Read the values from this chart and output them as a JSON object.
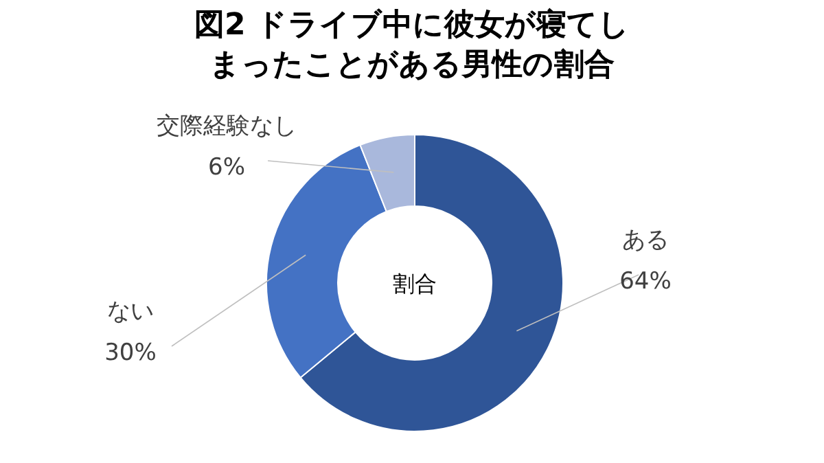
{
  "chart_data": {
    "type": "donut",
    "title": "図2 ドライブ中に彼女が寝てしまったことがある男性の割合",
    "categories": [
      "ある",
      "ない",
      "交際経験なし"
    ],
    "values": [
      64,
      30,
      6
    ],
    "value_labels": [
      "64%",
      "30%",
      "6%"
    ],
    "colors": [
      "#2f5597",
      "#4472c4",
      "#a9b8dc"
    ],
    "annotations": [
      "割合"
    ]
  }
}
